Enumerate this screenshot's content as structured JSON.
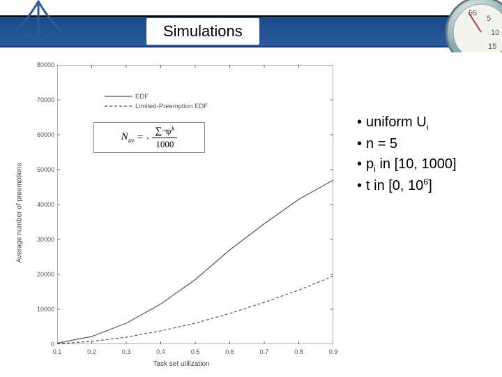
{
  "header": {
    "title": "Simulations"
  },
  "legend": {
    "items": [
      {
        "label": "EDF",
        "dash": "0"
      },
      {
        "label": "Limited-Preemption EDF",
        "dash": "4 3"
      }
    ]
  },
  "formula": {
    "lhs_base": "N",
    "lhs_sub": "av",
    "sum_lo": "k=1",
    "sum_hi": "1000",
    "sum_body_base": "ψ",
    "sum_body_sup": "k",
    "den": "1000"
  },
  "bullets": [
    {
      "pre": "uniform U",
      "sub": "i"
    },
    {
      "pre": "n = 5"
    },
    {
      "pre": "p",
      "sub": "i",
      "post": " in [10, 1000]"
    },
    {
      "pre": "t in [0, 10",
      "sup": "6",
      "post": "]"
    }
  ],
  "chart": {
    "type": "line",
    "xlabel": "Task set utilization",
    "ylabel": "Average number of preemptions",
    "xlim": [
      0.1,
      0.9
    ],
    "ylim": [
      0,
      80000
    ],
    "xticks": [
      0.1,
      0.2,
      0.3,
      0.4,
      0.5,
      0.6,
      0.7,
      0.8,
      0.9
    ],
    "yticks": [
      0,
      10000,
      20000,
      30000,
      40000,
      50000,
      60000,
      70000,
      80000
    ],
    "axis_color": "#666666",
    "tick_color": "#666666",
    "background_color": "#ffffff",
    "line_color": "#555555",
    "line_width": 1.2,
    "series": [
      {
        "name": "EDF",
        "dash": "0",
        "x": [
          0.1,
          0.2,
          0.3,
          0.4,
          0.5,
          0.6,
          0.7,
          0.8,
          0.9
        ],
        "y": [
          300,
          2200,
          6000,
          11500,
          18500,
          27000,
          34500,
          41500,
          47000
        ]
      },
      {
        "name": "Limited-Preemption EDF",
        "dash": "4 3",
        "x": [
          0.1,
          0.2,
          0.3,
          0.4,
          0.5,
          0.6,
          0.7,
          0.8,
          0.9
        ],
        "y": [
          100,
          800,
          2000,
          3800,
          6000,
          8800,
          12000,
          15500,
          19500
        ]
      }
    ]
  }
}
